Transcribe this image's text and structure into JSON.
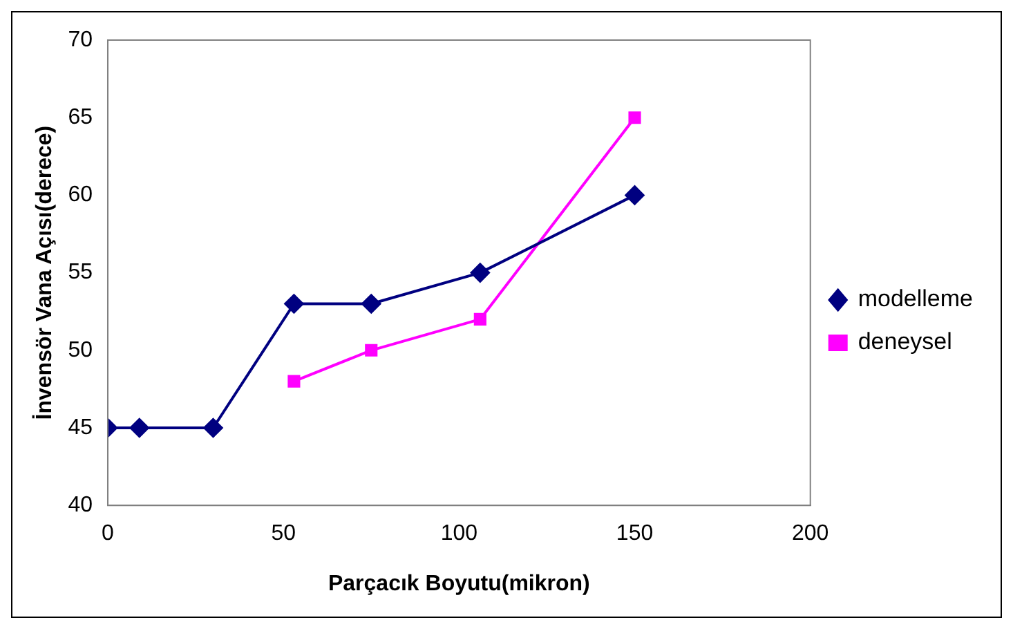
{
  "chart_data": {
    "type": "line",
    "xlabel": "Parçacık Boyutu(mikron)",
    "ylabel": "İnvensör Vana Açısı(derece)",
    "xlim": [
      0,
      200
    ],
    "xticks": [
      0,
      50,
      100,
      150,
      200
    ],
    "ylim": [
      40,
      70
    ],
    "yticks": [
      40,
      45,
      50,
      55,
      60,
      65,
      70
    ],
    "grid": false,
    "legend": "right",
    "series": [
      {
        "name": "modelleme",
        "color": "#000080",
        "marker": "diamond",
        "x": [
          0,
          9,
          30,
          53,
          75,
          106,
          150
        ],
        "values": [
          45,
          45,
          45,
          53,
          53,
          55,
          60
        ]
      },
      {
        "name": "deneysel",
        "color": "#ff00ff",
        "marker": "square",
        "x": [
          53,
          75,
          106,
          150
        ],
        "values": [
          48,
          50,
          52,
          65
        ]
      }
    ]
  }
}
